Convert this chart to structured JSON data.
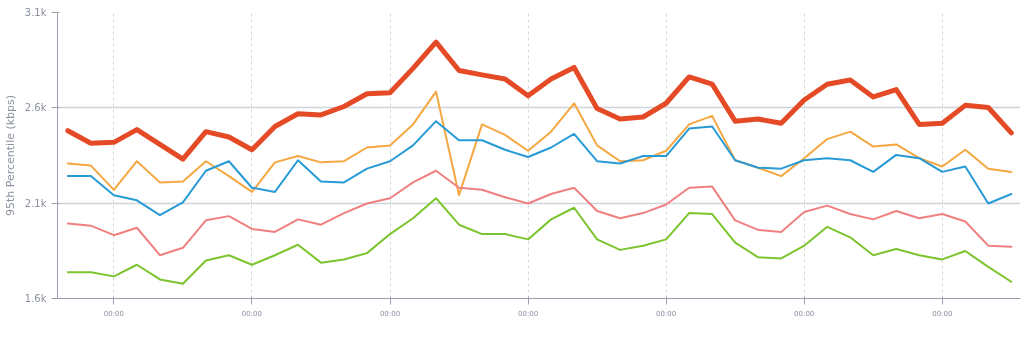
{
  "chart_data": {
    "type": "line",
    "ylabel": "95th Percentile (kbps)",
    "categories": [
      null,
      null,
      "00:00",
      null,
      null,
      null,
      null,
      null,
      "00:00",
      null,
      null,
      null,
      null,
      null,
      "00:00",
      null,
      null,
      null,
      null,
      null,
      "00:00",
      null,
      null,
      null,
      null,
      null,
      "00:00",
      null,
      null,
      null,
      null,
      null,
      "00:00",
      null,
      null,
      null,
      null,
      null,
      "00:00",
      null,
      null,
      null
    ],
    "series": [
      {
        "color": "#e44a26",
        "values": [
          2480,
          2414,
          2419,
          2486,
          2408,
          2331,
          2475,
          2447,
          2380,
          2502,
          2569,
          2563,
          2607,
          2674,
          2679,
          2807,
          2945,
          2796,
          2773,
          2751,
          2663,
          2751,
          2812,
          2596,
          2541,
          2552,
          2624,
          2762,
          2724,
          2530,
          2541,
          2519,
          2641,
          2724,
          2746,
          2657,
          2696,
          2513,
          2519,
          2613,
          2602,
          2469
        ]
      },
      {
        "color": "#f5a742",
        "values": [
          2308,
          2297,
          2170,
          2320,
          2209,
          2214,
          2320,
          2242,
          2159,
          2314,
          2347,
          2314,
          2320,
          2392,
          2403,
          2513,
          2685,
          2142,
          2513,
          2458,
          2375,
          2475,
          2624,
          2403,
          2320,
          2325,
          2375,
          2513,
          2558,
          2325,
          2286,
          2242,
          2336,
          2436,
          2475,
          2397,
          2408,
          2336,
          2292,
          2380,
          2281,
          2264
        ]
      },
      {
        "color": "#289bd6",
        "values": [
          2242,
          2242,
          2142,
          2115,
          2037,
          2104,
          2270,
          2320,
          2181,
          2159,
          2325,
          2214,
          2209,
          2281,
          2320,
          2403,
          2530,
          2430,
          2430,
          2380,
          2342,
          2392,
          2463,
          2320,
          2308,
          2347,
          2347,
          2491,
          2502,
          2325,
          2286,
          2281,
          2325,
          2336,
          2325,
          2264,
          2353,
          2336,
          2264,
          2292,
          2098,
          2148
        ]
      },
      {
        "color": "#f08080",
        "values": [
          1993,
          1982,
          1932,
          1971,
          1827,
          1866,
          2010,
          2032,
          1965,
          1949,
          2015,
          1987,
          2048,
          2098,
          2126,
          2209,
          2270,
          2181,
          2170,
          2131,
          2098,
          2148,
          2181,
          2059,
          2021,
          2048,
          2093,
          2181,
          2187,
          2010,
          1960,
          1949,
          2054,
          2087,
          2043,
          2015,
          2059,
          2021,
          2043,
          2004,
          1877,
          1871
        ]
      },
      {
        "color": "#7cc42e",
        "values": [
          1738,
          1738,
          1716,
          1777,
          1700,
          1677,
          1799,
          1827,
          1777,
          1827,
          1882,
          1788,
          1805,
          1838,
          1938,
          2021,
          2126,
          1987,
          1938,
          1938,
          1910,
          2015,
          2076,
          1910,
          1855,
          1877,
          1910,
          2048,
          2043,
          1893,
          1816,
          1810,
          1877,
          1976,
          1921,
          1827,
          1860,
          1827,
          1805,
          1849,
          1766,
          1688
        ]
      }
    ],
    "ylim": [
      1600,
      3100
    ],
    "yticks": [
      {
        "value": 1600,
        "label": "1.6k"
      },
      {
        "value": 2100,
        "label": "2.1k"
      },
      {
        "value": 2600,
        "label": "2.6k"
      },
      {
        "value": 3100,
        "label": "3.1k"
      }
    ],
    "grid": true,
    "line_style": "solid"
  }
}
